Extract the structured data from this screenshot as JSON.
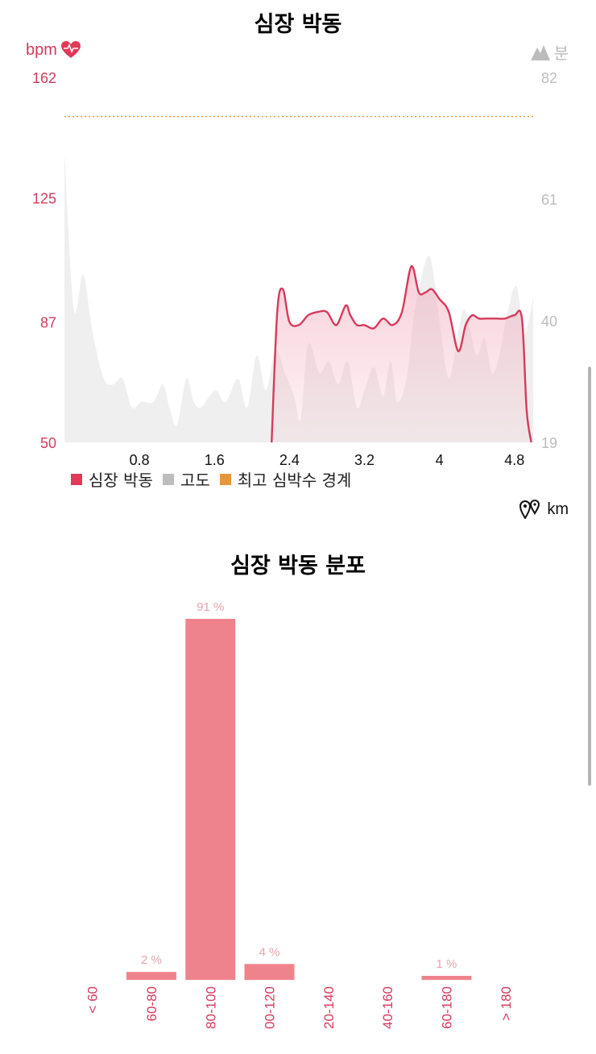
{
  "hr_chart": {
    "title": "심장 박동",
    "left_unit": "bpm",
    "right_unit": "분",
    "x_unit": "km",
    "legend": [
      {
        "label": "심장 박동",
        "color": "#e03a58"
      },
      {
        "label": "고도",
        "color": "#bdbdbd"
      },
      {
        "label": "최고 심박수 경계",
        "color": "#e8963a"
      }
    ]
  },
  "dist_chart": {
    "title": "심장 박동 분포"
  },
  "chart_data": [
    {
      "type": "line",
      "title": "심장 박동",
      "xlabel": "km",
      "ylabel": "bpm",
      "xlim": [
        0,
        5.0
      ],
      "ylim": [
        50,
        162
      ],
      "y2lim": [
        19,
        82
      ],
      "x_ticks": [
        "0.8",
        "1.6",
        "2.4",
        "3.2",
        "4",
        "4.8"
      ],
      "y_ticks": [
        "162",
        "125",
        "87",
        "50"
      ],
      "y2_ticks": [
        "82",
        "61",
        "40",
        "19"
      ],
      "max_hr_boundary": 150,
      "series": [
        {
          "name": "심장 박동",
          "x": [
            2.21,
            2.27,
            2.33,
            2.4,
            2.5,
            2.6,
            2.7,
            2.8,
            2.9,
            3.0,
            3.05,
            3.12,
            3.2,
            3.3,
            3.4,
            3.5,
            3.6,
            3.7,
            3.78,
            3.85,
            3.92,
            4.0,
            4.1,
            4.2,
            4.28,
            4.35,
            4.42,
            4.5,
            4.6,
            4.7,
            4.8,
            4.88,
            4.93,
            4.98
          ],
          "values": [
            50,
            90,
            97,
            87,
            86,
            89,
            90,
            90,
            86,
            92,
            89,
            86,
            86,
            85,
            88,
            86,
            90,
            104,
            96,
            96,
            97,
            94,
            90,
            78,
            86,
            89,
            88,
            88,
            88,
            88,
            89,
            88,
            60,
            50
          ]
        },
        {
          "name": "고도",
          "axis": "right",
          "x": [
            0,
            0.1,
            0.2,
            0.3,
            0.42,
            0.52,
            0.62,
            0.72,
            0.82,
            0.95,
            1.05,
            1.12,
            1.2,
            1.3,
            1.38,
            1.45,
            1.55,
            1.62,
            1.72,
            1.85,
            1.95,
            2.05,
            2.15,
            2.25,
            2.35,
            2.45,
            2.52,
            2.6,
            2.72,
            2.82,
            2.92,
            3.02,
            3.12,
            3.2,
            3.3,
            3.4,
            3.48,
            3.55,
            3.65,
            3.72,
            3.8,
            3.9,
            4.0,
            4.1,
            4.2,
            4.26,
            4.32,
            4.4,
            4.48,
            4.56,
            4.64,
            4.72,
            4.82,
            4.9,
            4.95,
            5.0
          ],
          "values": [
            69,
            42,
            48,
            38,
            30,
            29,
            30,
            25,
            26,
            26,
            29,
            25,
            22,
            30,
            26,
            25,
            27,
            28,
            26,
            30,
            25,
            34,
            28,
            35,
            31,
            27,
            23,
            36,
            31,
            33,
            29,
            33,
            25,
            28,
            32,
            27,
            33,
            26,
            30,
            40,
            47,
            51,
            40,
            30,
            38,
            42,
            39,
            34,
            37,
            31,
            34,
            41,
            46,
            38,
            40,
            44
          ]
        }
      ]
    },
    {
      "type": "bar",
      "title": "심장 박동 분포",
      "categories": [
        "< 60",
        "60-80",
        "80-100",
        "00-120",
        "20-140",
        "40-160",
        "60-180",
        "> 180"
      ],
      "values": [
        0,
        2,
        91,
        4,
        0,
        0,
        1,
        0
      ],
      "data_labels": [
        "",
        "2 %",
        "91 %",
        "4 %",
        "",
        "",
        "1 %",
        ""
      ],
      "ylim": [
        0,
        91
      ]
    }
  ]
}
